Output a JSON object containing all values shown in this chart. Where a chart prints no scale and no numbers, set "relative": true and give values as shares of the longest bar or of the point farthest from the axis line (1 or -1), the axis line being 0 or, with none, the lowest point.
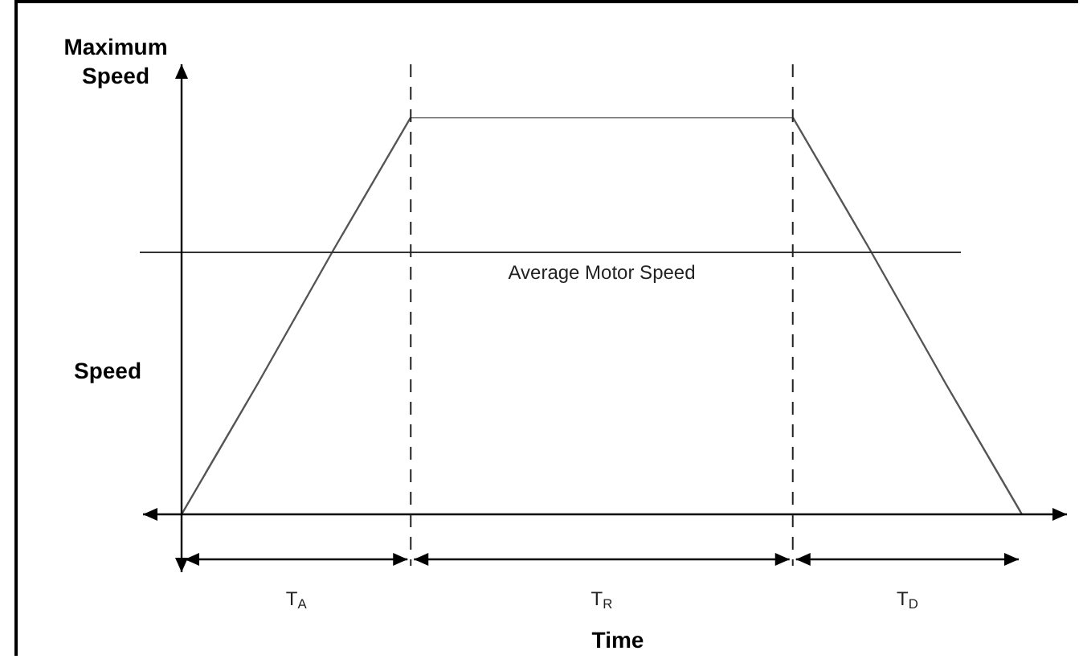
{
  "chart_data": {
    "type": "line",
    "relative": true,
    "xlabel": "Time",
    "ylabel": "Speed",
    "annotations": [
      "Maximum Speed",
      "T$_{A}$",
      "T$_{R}$",
      "T$_{D}$"
    ],
    "categories": [
      null,
      null,
      null,
      null,
      null,
      null,
      null,
      null,
      null,
      null,
      null,
      null
    ],
    "series": [
      {
        "color": "#555555",
        "values": [
          0,
          0.33,
          0.67,
          1,
          1,
          1,
          1,
          1,
          1,
          0.67,
          0.33,
          0
        ]
      }
    ],
    "marker": "none",
    "line_style": "solid",
    "ref_lines": [
      {
        "axis": "y",
        "value": 0.66,
        "label": "Average Motor Speed",
        "color": "#333333",
        "line_style": "solid"
      }
    ]
  }
}
